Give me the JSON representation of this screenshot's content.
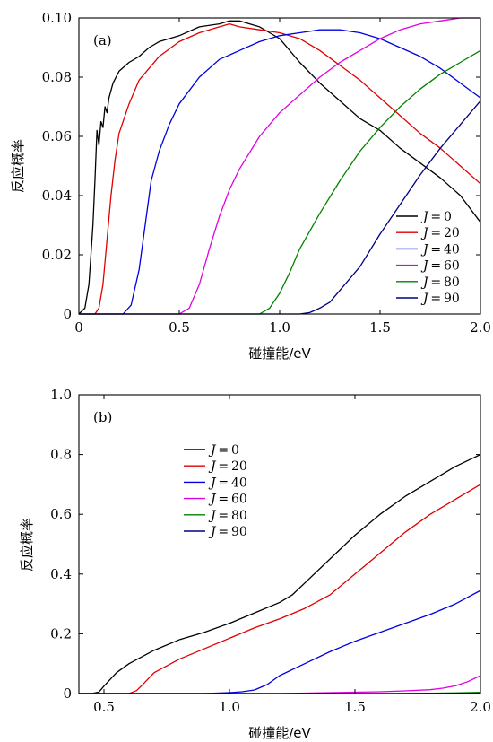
{
  "chart_data": [
    {
      "type": "line",
      "panel_label": "(a)",
      "xlabel": "碰撞能/eV",
      "ylabel": "反应概率",
      "xlim": [
        0,
        2.0
      ],
      "ylim": [
        0,
        0.1
      ],
      "xticks": [
        "0",
        "0.5",
        "1.0",
        "1.5",
        "2.0"
      ],
      "yticks": [
        "0",
        "0.02",
        "0.04",
        "0.06",
        "0.08",
        "0.10"
      ],
      "legend_position": "bottom-right",
      "series": [
        {
          "name": "J = 0",
          "legend_var": "J",
          "legend_value": "0",
          "color": "#000000",
          "x": [
            0,
            0.03,
            0.05,
            0.07,
            0.08,
            0.09,
            0.1,
            0.11,
            0.12,
            0.13,
            0.14,
            0.15,
            0.17,
            0.2,
            0.25,
            0.3,
            0.35,
            0.4,
            0.5,
            0.6,
            0.7,
            0.75,
            0.8,
            0.85,
            0.9,
            0.95,
            1.0,
            1.1,
            1.2,
            1.3,
            1.4,
            1.5,
            1.6,
            1.7,
            1.8,
            1.9,
            2.0
          ],
          "y": [
            0,
            0.002,
            0.01,
            0.03,
            0.045,
            0.062,
            0.057,
            0.065,
            0.063,
            0.07,
            0.068,
            0.073,
            0.078,
            0.082,
            0.085,
            0.087,
            0.09,
            0.092,
            0.094,
            0.097,
            0.098,
            0.099,
            0.099,
            0.098,
            0.097,
            0.095,
            0.093,
            0.085,
            0.078,
            0.072,
            0.066,
            0.062,
            0.056,
            0.051,
            0.046,
            0.04,
            0.031
          ]
        },
        {
          "name": "J = 20",
          "legend_var": "J",
          "legend_value": "20",
          "color": "#e00000",
          "x": [
            0,
            0.08,
            0.1,
            0.12,
            0.14,
            0.16,
            0.18,
            0.2,
            0.25,
            0.3,
            0.35,
            0.4,
            0.5,
            0.6,
            0.7,
            0.75,
            0.8,
            0.9,
            1.0,
            1.1,
            1.2,
            1.3,
            1.4,
            1.5,
            1.6,
            1.7,
            1.8,
            1.9,
            2.0
          ],
          "y": [
            0,
            0.0,
            0.002,
            0.01,
            0.025,
            0.04,
            0.052,
            0.061,
            0.071,
            0.079,
            0.083,
            0.087,
            0.092,
            0.095,
            0.097,
            0.098,
            0.097,
            0.096,
            0.095,
            0.093,
            0.089,
            0.084,
            0.079,
            0.073,
            0.067,
            0.061,
            0.056,
            0.05,
            0.044
          ]
        },
        {
          "name": "J = 40",
          "legend_var": "J",
          "legend_value": "40",
          "color": "#0000e0",
          "x": [
            0,
            0.22,
            0.26,
            0.3,
            0.33,
            0.36,
            0.4,
            0.45,
            0.5,
            0.6,
            0.7,
            0.8,
            0.9,
            1.0,
            1.1,
            1.2,
            1.3,
            1.4,
            1.5,
            1.6,
            1.7,
            1.8,
            1.9,
            2.0
          ],
          "y": [
            0,
            0.0,
            0.003,
            0.015,
            0.03,
            0.045,
            0.055,
            0.064,
            0.071,
            0.08,
            0.086,
            0.089,
            0.092,
            0.094,
            0.095,
            0.096,
            0.096,
            0.095,
            0.093,
            0.09,
            0.087,
            0.083,
            0.078,
            0.073
          ]
        },
        {
          "name": "J = 60",
          "legend_var": "J",
          "legend_value": "60",
          "color": "#e000e0",
          "x": [
            0,
            0.5,
            0.55,
            0.6,
            0.65,
            0.7,
            0.75,
            0.8,
            0.9,
            1.0,
            1.1,
            1.2,
            1.3,
            1.4,
            1.5,
            1.6,
            1.7,
            1.8,
            1.9,
            2.0
          ],
          "y": [
            0,
            0.0,
            0.002,
            0.01,
            0.022,
            0.033,
            0.042,
            0.049,
            0.06,
            0.068,
            0.074,
            0.08,
            0.085,
            0.089,
            0.093,
            0.096,
            0.098,
            0.099,
            0.1,
            0.1
          ]
        },
        {
          "name": "J = 80",
          "legend_var": "J",
          "legend_value": "80",
          "color": "#008000",
          "x": [
            0,
            0.9,
            0.95,
            1.0,
            1.05,
            1.1,
            1.2,
            1.3,
            1.4,
            1.5,
            1.6,
            1.7,
            1.8,
            1.9,
            2.0
          ],
          "y": [
            0,
            0.0,
            0.002,
            0.007,
            0.014,
            0.022,
            0.034,
            0.045,
            0.055,
            0.063,
            0.07,
            0.076,
            0.081,
            0.085,
            0.089
          ]
        },
        {
          "name": "J = 90",
          "legend_var": "J",
          "legend_value": "90",
          "color": "#000080",
          "x": [
            0,
            1.1,
            1.15,
            1.2,
            1.25,
            1.3,
            1.4,
            1.5,
            1.6,
            1.7,
            1.8,
            1.9,
            2.0
          ],
          "y": [
            0,
            0.0,
            0.0005,
            0.002,
            0.004,
            0.008,
            0.016,
            0.027,
            0.037,
            0.047,
            0.056,
            0.064,
            0.072
          ]
        }
      ]
    },
    {
      "type": "line",
      "panel_label": "(b)",
      "xlabel": "碰撞能/eV",
      "ylabel": "反应概率",
      "xlim": [
        0.4,
        2.0
      ],
      "ylim": [
        0,
        1.0
      ],
      "xticks": [
        "0.5",
        "1.0",
        "1.5",
        "2.0"
      ],
      "yticks": [
        "0",
        "0.2",
        "0.4",
        "0.6",
        "0.8",
        "1.0"
      ],
      "legend_position": "top-left",
      "series": [
        {
          "name": "J = 0",
          "legend_var": "J",
          "legend_value": "0",
          "color": "#000000",
          "x": [
            0.4,
            0.45,
            0.48,
            0.5,
            0.55,
            0.6,
            0.7,
            0.8,
            0.9,
            1.0,
            1.1,
            1.2,
            1.25,
            1.3,
            1.4,
            1.5,
            1.6,
            1.7,
            1.8,
            1.9,
            2.0
          ],
          "y": [
            0,
            0.0,
            0.005,
            0.025,
            0.07,
            0.1,
            0.145,
            0.18,
            0.205,
            0.235,
            0.27,
            0.305,
            0.33,
            0.37,
            0.45,
            0.53,
            0.6,
            0.66,
            0.71,
            0.76,
            0.8
          ]
        },
        {
          "name": "J = 20",
          "legend_var": "J",
          "legend_value": "20",
          "color": "#e00000",
          "x": [
            0.4,
            0.6,
            0.63,
            0.66,
            0.7,
            0.8,
            0.9,
            1.0,
            1.1,
            1.2,
            1.3,
            1.4,
            1.5,
            1.6,
            1.7,
            1.8,
            1.9,
            2.0
          ],
          "y": [
            0,
            0.0,
            0.01,
            0.035,
            0.07,
            0.115,
            0.15,
            0.185,
            0.22,
            0.25,
            0.285,
            0.33,
            0.4,
            0.47,
            0.54,
            0.6,
            0.65,
            0.7
          ]
        },
        {
          "name": "J = 40",
          "legend_var": "J",
          "legend_value": "40",
          "color": "#0000e0",
          "x": [
            0.4,
            0.9,
            1.0,
            1.05,
            1.1,
            1.15,
            1.2,
            1.3,
            1.4,
            1.5,
            1.6,
            1.7,
            1.8,
            1.9,
            2.0
          ],
          "y": [
            0,
            0.0,
            0.003,
            0.006,
            0.012,
            0.03,
            0.06,
            0.1,
            0.14,
            0.175,
            0.205,
            0.235,
            0.265,
            0.3,
            0.345
          ]
        },
        {
          "name": "J = 60",
          "legend_var": "J",
          "legend_value": "60",
          "color": "#e000e0",
          "x": [
            0.4,
            1.2,
            1.4,
            1.6,
            1.7,
            1.8,
            1.85,
            1.9,
            1.95,
            2.0
          ],
          "y": [
            0,
            0.0,
            0.003,
            0.006,
            0.009,
            0.013,
            0.018,
            0.026,
            0.04,
            0.06
          ]
        },
        {
          "name": "J = 80",
          "legend_var": "J",
          "legend_value": "80",
          "color": "#008000",
          "x": [
            0.4,
            1.6,
            1.8,
            1.9,
            2.0
          ],
          "y": [
            0,
            0.0,
            0.001,
            0.002,
            0.004
          ]
        },
        {
          "name": "J = 90",
          "legend_var": "J",
          "legend_value": "90",
          "color": "#000080",
          "x": [
            0.4,
            1.8,
            2.0
          ],
          "y": [
            0,
            0.0,
            0.001
          ]
        }
      ]
    }
  ]
}
